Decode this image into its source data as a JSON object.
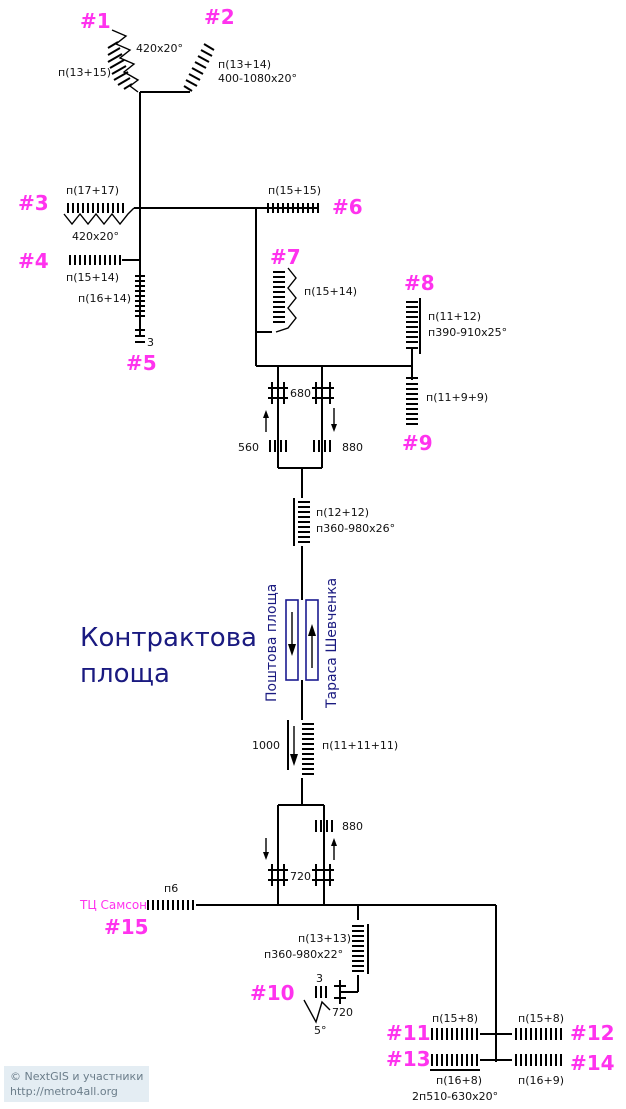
{
  "station": {
    "line1": "Контрактова",
    "line2": "площа"
  },
  "platforms": {
    "left": "Поштова площа",
    "right": "Тараса Шевченка"
  },
  "exits": [
    {
      "id": "#1",
      "label": "п(13+15)",
      "extra": "420x20°"
    },
    {
      "id": "#2",
      "label": "п(13+14)",
      "extra": "400-1080x20°"
    },
    {
      "id": "#3",
      "label": "п(17+17)",
      "extra": "420x20°"
    },
    {
      "id": "#4",
      "label": "п(15+14)",
      "extra": ""
    },
    {
      "id": "#5",
      "label": "п(16+14)",
      "extra": "3"
    },
    {
      "id": "#6",
      "label": "п(15+15)",
      "extra": ""
    },
    {
      "id": "#7",
      "label": "п(15+14)",
      "extra": ""
    },
    {
      "id": "#8",
      "label": "п(11+12)",
      "extra": "п390-910x25°"
    },
    {
      "id": "#9",
      "label": "п(11+9+9)",
      "extra": ""
    },
    {
      "id": "#10",
      "label": "3",
      "extra": "720",
      "angle": "5°"
    },
    {
      "id": "#11",
      "label": "п(15+8)",
      "extra": ""
    },
    {
      "id": "#12",
      "label": "п(15+8)",
      "extra": ""
    },
    {
      "id": "#13",
      "label": "п(16+8)",
      "extra": "2п510-630x20°"
    },
    {
      "id": "#14",
      "label": "п(16+9)",
      "extra": ""
    },
    {
      "id": "#15",
      "label": "п6",
      "extra": "ТЦ Самсон"
    }
  ],
  "measures": {
    "upper_gate_width": "680",
    "upper_left": "560",
    "upper_right": "880",
    "upper_stair": "п(12+12)",
    "upper_stair_extra": "п360-980x26°",
    "lower_stair_len": "1000",
    "lower_stair": "п(11+11+11)",
    "lower_right": "880",
    "lower_gate_width": "720",
    "bottom_stair": "п(13+13)",
    "bottom_stair_extra": "п360-980x22°"
  },
  "copyright": {
    "line1": "© NextGIS и участники",
    "line2": "http://metro4all.org"
  }
}
